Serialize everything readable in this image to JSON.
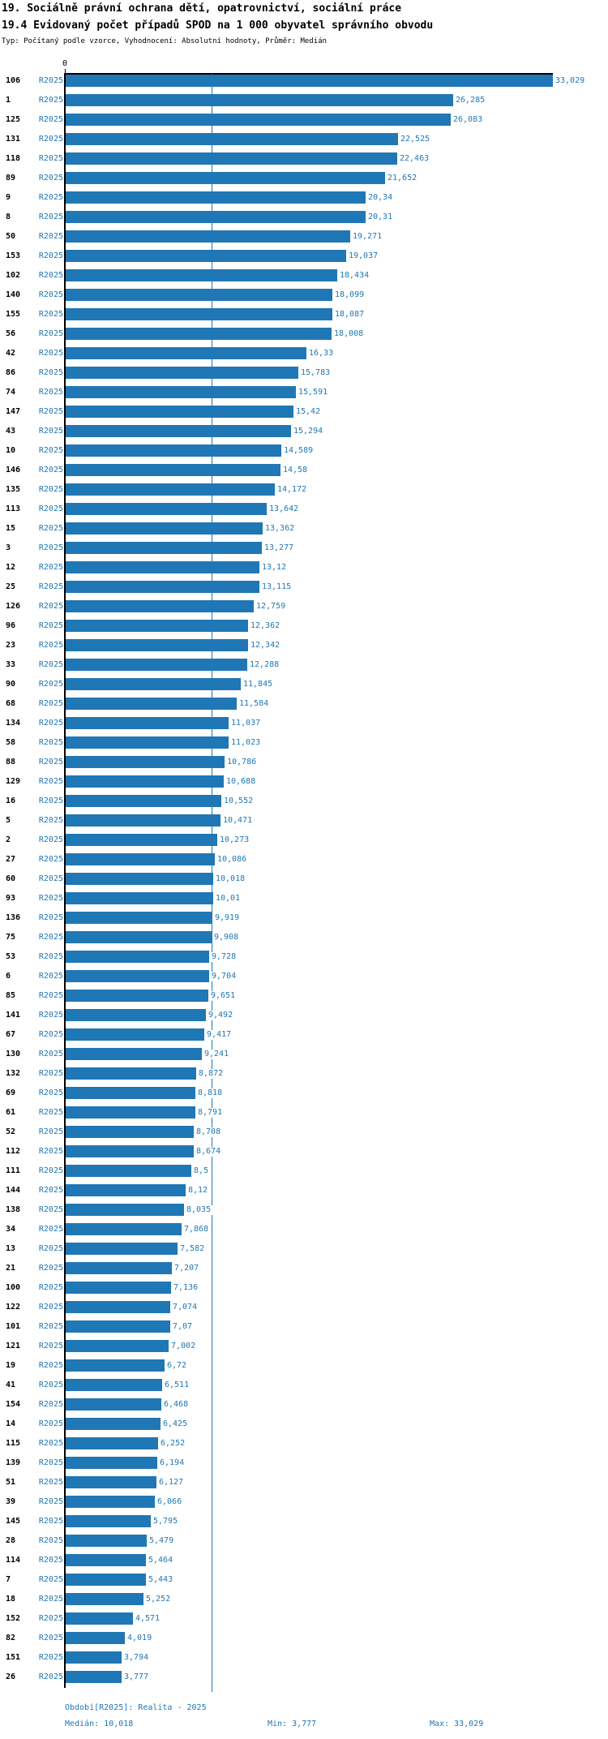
{
  "header": {
    "title_line1": "19. Sociálně právní ochrana dětí, opatrovnictví, sociální práce",
    "title_line2": "19.4 Evidovaný počet případů SPOD na 1 000 obyvatel správního obvodu",
    "subtitle": "Typ: Počítaný podle vzorce, Vyhodnocení: Absolutní hodnoty, Průměr: Medián"
  },
  "chart_data": {
    "type": "bar",
    "orientation": "horizontal",
    "xlabel": "",
    "ylabel": "",
    "axis_zero_label": "0",
    "xlim": [
      0,
      33.029
    ],
    "grid": false,
    "median_line_value": 10.018,
    "bar_color": "#2077b5",
    "label_color": "#1f77b4",
    "rows": [
      {
        "id": "106",
        "period": "R2025",
        "v": 33.029,
        "label": "33,029"
      },
      {
        "id": "1",
        "period": "R2025",
        "v": 26.285,
        "label": "26,285"
      },
      {
        "id": "125",
        "period": "R2025",
        "v": 26.083,
        "label": "26,083"
      },
      {
        "id": "131",
        "period": "R2025",
        "v": 22.525,
        "label": "22,525"
      },
      {
        "id": "118",
        "period": "R2025",
        "v": 22.463,
        "label": "22,463"
      },
      {
        "id": "89",
        "period": "R2025",
        "v": 21.652,
        "label": "21,652"
      },
      {
        "id": "9",
        "period": "R2025",
        "v": 20.34,
        "label": "20,34"
      },
      {
        "id": "8",
        "period": "R2025",
        "v": 20.31,
        "label": "20,31"
      },
      {
        "id": "50",
        "period": "R2025",
        "v": 19.271,
        "label": "19,271"
      },
      {
        "id": "153",
        "period": "R2025",
        "v": 19.037,
        "label": "19,037"
      },
      {
        "id": "102",
        "period": "R2025",
        "v": 18.434,
        "label": "18,434"
      },
      {
        "id": "140",
        "period": "R2025",
        "v": 18.099,
        "label": "18,099"
      },
      {
        "id": "155",
        "period": "R2025",
        "v": 18.087,
        "label": "18,087"
      },
      {
        "id": "56",
        "period": "R2025",
        "v": 18.008,
        "label": "18,008"
      },
      {
        "id": "42",
        "period": "R2025",
        "v": 16.33,
        "label": "16,33"
      },
      {
        "id": "86",
        "period": "R2025",
        "v": 15.783,
        "label": "15,783"
      },
      {
        "id": "74",
        "period": "R2025",
        "v": 15.591,
        "label": "15,591"
      },
      {
        "id": "147",
        "period": "R2025",
        "v": 15.42,
        "label": "15,42"
      },
      {
        "id": "43",
        "period": "R2025",
        "v": 15.294,
        "label": "15,294"
      },
      {
        "id": "10",
        "period": "R2025",
        "v": 14.589,
        "label": "14,589"
      },
      {
        "id": "146",
        "period": "R2025",
        "v": 14.58,
        "label": "14,58"
      },
      {
        "id": "135",
        "period": "R2025",
        "v": 14.172,
        "label": "14,172"
      },
      {
        "id": "113",
        "period": "R2025",
        "v": 13.642,
        "label": "13,642"
      },
      {
        "id": "15",
        "period": "R2025",
        "v": 13.362,
        "label": "13,362"
      },
      {
        "id": "3",
        "period": "R2025",
        "v": 13.277,
        "label": "13,277"
      },
      {
        "id": "12",
        "period": "R2025",
        "v": 13.12,
        "label": "13,12"
      },
      {
        "id": "25",
        "period": "R2025",
        "v": 13.115,
        "label": "13,115"
      },
      {
        "id": "126",
        "period": "R2025",
        "v": 12.759,
        "label": "12,759"
      },
      {
        "id": "96",
        "period": "R2025",
        "v": 12.362,
        "label": "12,362"
      },
      {
        "id": "23",
        "period": "R2025",
        "v": 12.342,
        "label": "12,342"
      },
      {
        "id": "33",
        "period": "R2025",
        "v": 12.288,
        "label": "12,288"
      },
      {
        "id": "90",
        "period": "R2025",
        "v": 11.845,
        "label": "11,845"
      },
      {
        "id": "68",
        "period": "R2025",
        "v": 11.584,
        "label": "11,584"
      },
      {
        "id": "134",
        "period": "R2025",
        "v": 11.037,
        "label": "11,037"
      },
      {
        "id": "58",
        "period": "R2025",
        "v": 11.023,
        "label": "11,023"
      },
      {
        "id": "88",
        "period": "R2025",
        "v": 10.786,
        "label": "10,786"
      },
      {
        "id": "129",
        "period": "R2025",
        "v": 10.688,
        "label": "10,688"
      },
      {
        "id": "16",
        "period": "R2025",
        "v": 10.552,
        "label": "10,552"
      },
      {
        "id": "5",
        "period": "R2025",
        "v": 10.471,
        "label": "10,471"
      },
      {
        "id": "2",
        "period": "R2025",
        "v": 10.273,
        "label": "10,273"
      },
      {
        "id": "27",
        "period": "R2025",
        "v": 10.086,
        "label": "10,086"
      },
      {
        "id": "60",
        "period": "R2025",
        "v": 10.018,
        "label": "10,018"
      },
      {
        "id": "93",
        "period": "R2025",
        "v": 10.01,
        "label": "10,01"
      },
      {
        "id": "136",
        "period": "R2025",
        "v": 9.919,
        "label": "9,919"
      },
      {
        "id": "75",
        "period": "R2025",
        "v": 9.908,
        "label": "9,908"
      },
      {
        "id": "53",
        "period": "R2025",
        "v": 9.728,
        "label": "9,728"
      },
      {
        "id": "6",
        "period": "R2025",
        "v": 9.704,
        "label": "9,704"
      },
      {
        "id": "85",
        "period": "R2025",
        "v": 9.651,
        "label": "9,651"
      },
      {
        "id": "141",
        "period": "R2025",
        "v": 9.492,
        "label": "9,492"
      },
      {
        "id": "67",
        "period": "R2025",
        "v": 9.417,
        "label": "9,417"
      },
      {
        "id": "130",
        "period": "R2025",
        "v": 9.241,
        "label": "9,241"
      },
      {
        "id": "132",
        "period": "R2025",
        "v": 8.872,
        "label": "8,872"
      },
      {
        "id": "69",
        "period": "R2025",
        "v": 8.818,
        "label": "8,818"
      },
      {
        "id": "61",
        "period": "R2025",
        "v": 8.791,
        "label": "8,791"
      },
      {
        "id": "52",
        "period": "R2025",
        "v": 8.708,
        "label": "8,708"
      },
      {
        "id": "112",
        "period": "R2025",
        "v": 8.674,
        "label": "8,674"
      },
      {
        "id": "111",
        "period": "R2025",
        "v": 8.5,
        "label": "8,5"
      },
      {
        "id": "144",
        "period": "R2025",
        "v": 8.12,
        "label": "8,12"
      },
      {
        "id": "138",
        "period": "R2025",
        "v": 8.035,
        "label": "8,035"
      },
      {
        "id": "34",
        "period": "R2025",
        "v": 7.868,
        "label": "7,868"
      },
      {
        "id": "13",
        "period": "R2025",
        "v": 7.582,
        "label": "7,582"
      },
      {
        "id": "21",
        "period": "R2025",
        "v": 7.207,
        "label": "7,207"
      },
      {
        "id": "100",
        "period": "R2025",
        "v": 7.136,
        "label": "7,136"
      },
      {
        "id": "122",
        "period": "R2025",
        "v": 7.074,
        "label": "7,074"
      },
      {
        "id": "101",
        "period": "R2025",
        "v": 7.07,
        "label": "7,07"
      },
      {
        "id": "121",
        "period": "R2025",
        "v": 7.002,
        "label": "7,002"
      },
      {
        "id": "19",
        "period": "R2025",
        "v": 6.72,
        "label": "6,72"
      },
      {
        "id": "41",
        "period": "R2025",
        "v": 6.511,
        "label": "6,511"
      },
      {
        "id": "154",
        "period": "R2025",
        "v": 6.468,
        "label": "6,468"
      },
      {
        "id": "14",
        "period": "R2025",
        "v": 6.425,
        "label": "6,425"
      },
      {
        "id": "115",
        "period": "R2025",
        "v": 6.252,
        "label": "6,252"
      },
      {
        "id": "139",
        "period": "R2025",
        "v": 6.194,
        "label": "6,194"
      },
      {
        "id": "51",
        "period": "R2025",
        "v": 6.127,
        "label": "6,127"
      },
      {
        "id": "39",
        "period": "R2025",
        "v": 6.066,
        "label": "6,066"
      },
      {
        "id": "145",
        "period": "R2025",
        "v": 5.795,
        "label": "5,795"
      },
      {
        "id": "28",
        "period": "R2025",
        "v": 5.479,
        "label": "5,479"
      },
      {
        "id": "114",
        "period": "R2025",
        "v": 5.464,
        "label": "5,464"
      },
      {
        "id": "7",
        "period": "R2025",
        "v": 5.443,
        "label": "5,443"
      },
      {
        "id": "18",
        "period": "R2025",
        "v": 5.252,
        "label": "5,252"
      },
      {
        "id": "152",
        "period": "R2025",
        "v": 4.571,
        "label": "4,571"
      },
      {
        "id": "82",
        "period": "R2025",
        "v": 4.019,
        "label": "4,019"
      },
      {
        "id": "151",
        "period": "R2025",
        "v": 3.794,
        "label": "3,794"
      },
      {
        "id": "26",
        "period": "R2025",
        "v": 3.777,
        "label": "3,777"
      }
    ]
  },
  "footer": {
    "period_line": "Období[R2025]: Realita - 2025",
    "median_label": "Medián: 10,018",
    "min_label": "Min: 3,777",
    "max_label": "Max: 33,029"
  }
}
